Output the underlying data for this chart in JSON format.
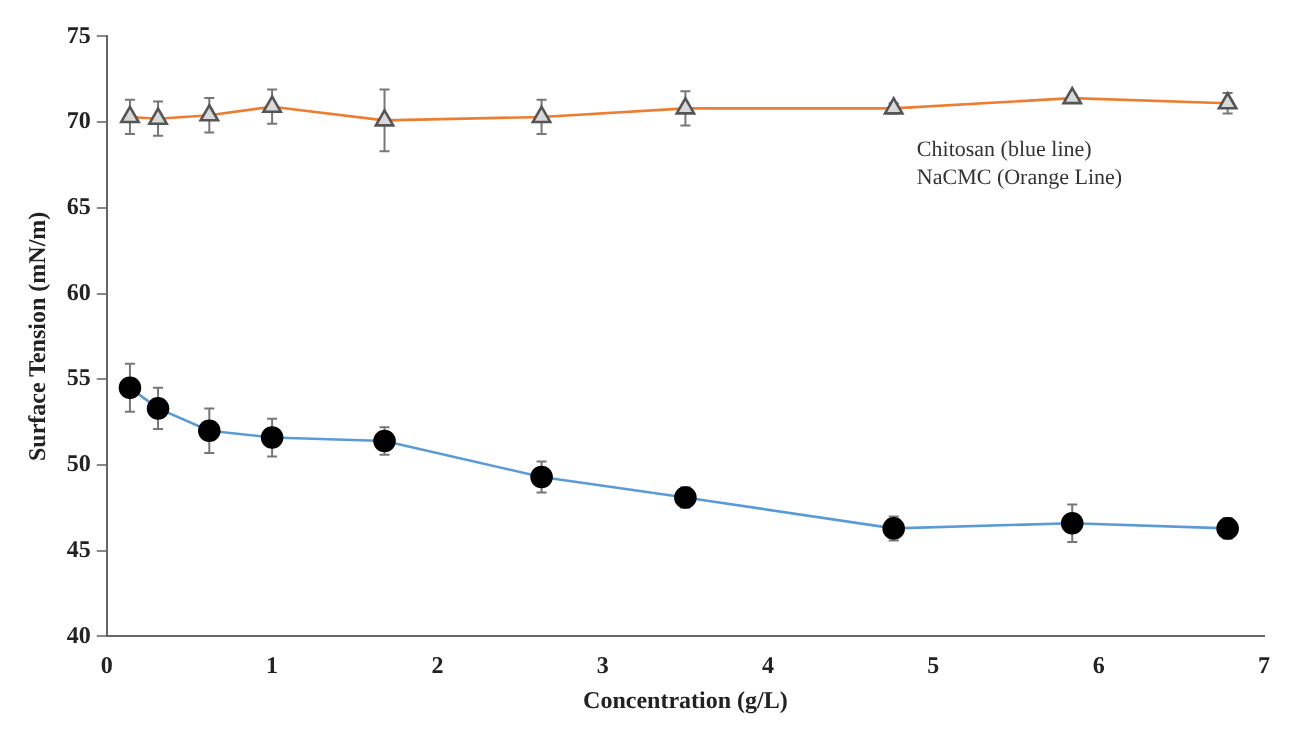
{
  "chart_data": {
    "type": "line",
    "xlabel": "Concentration (g/L)",
    "ylabel": "Surface Tension (mN/m)",
    "x": [
      0.14,
      0.31,
      0.62,
      1.0,
      1.68,
      2.63,
      3.5,
      4.76,
      5.84,
      6.78
    ],
    "series": [
      {
        "color": "#5b9bd5",
        "marker": "circle",
        "values": [
          54.5,
          53.3,
          52.0,
          51.6,
          51.4,
          49.3,
          48.1,
          46.3,
          46.6,
          46.3
        ],
        "errors": [
          1.4,
          1.2,
          1.3,
          1.1,
          0.8,
          0.9,
          0.6,
          0.7,
          1.1,
          0.6
        ]
      },
      {
        "color": "#ed7d31",
        "marker": "triangle",
        "values": [
          70.3,
          70.2,
          70.4,
          70.9,
          70.1,
          70.3,
          70.8,
          70.8,
          71.4,
          71.1
        ],
        "errors": [
          1.0,
          1.0,
          1.0,
          1.0,
          1.8,
          1.0,
          1.0,
          0.3,
          0.2,
          0.6
        ]
      }
    ],
    "xlim": [
      0,
      7
    ],
    "xticks": [
      0,
      1,
      2,
      3,
      4,
      5,
      6,
      7
    ],
    "ylim": [
      40,
      75
    ],
    "yticks": [
      40,
      45,
      50,
      55,
      60,
      65,
      70,
      75
    ],
    "grid": false,
    "legend": false,
    "annotations": [
      "Chitosan (blue line)",
      "NaCMC (Orange Line)"
    ]
  }
}
